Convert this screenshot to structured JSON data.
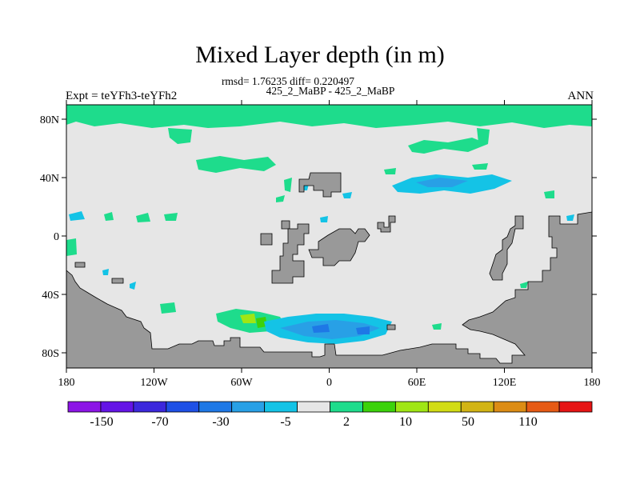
{
  "title": "Mixed Layer depth (in m)",
  "stats_line": "rmsd= 1.76235 diff= 0.220497",
  "periods_line": "425_2_MaBP - 425_2_MaBP",
  "expt_label": "Expt = teYFh3-teYFh2",
  "season_label": "ANN",
  "x_ticks": [
    "180",
    "120W",
    "60W",
    "0",
    "60E",
    "120E",
    "180"
  ],
  "y_ticks": [
    "80N",
    "40N",
    "0",
    "40S",
    "80S"
  ],
  "colorbar": {
    "colors": [
      "#8c14e6",
      "#6414e6",
      "#3c28dc",
      "#1e50e6",
      "#1e78e6",
      "#28a0e6",
      "#14c3e6",
      "#e6e6e6",
      "#1edc8c",
      "#3cd20a",
      "#a0e614",
      "#d2dc14",
      "#d2b414",
      "#dc8c14",
      "#e65a14",
      "#e61414"
    ],
    "labels": [
      "-150",
      "-70",
      "-30",
      "-5",
      "2",
      "10",
      "50",
      "110"
    ]
  },
  "palette": {
    "ocean_neutral": "#e6e6e6",
    "land": "#999999",
    "green": "#1edc8c",
    "blue_light": "#14c3e6",
    "blue_mid": "#28a0e6",
    "blue_dark": "#1e78e6",
    "yellow_green": "#a0e614",
    "bright_green": "#3cd20a"
  }
}
